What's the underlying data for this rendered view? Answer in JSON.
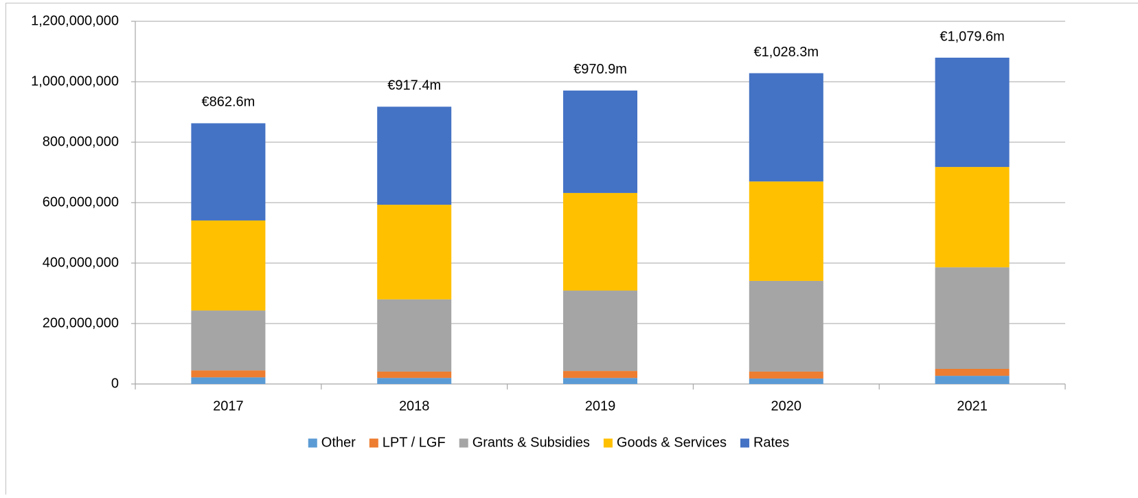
{
  "chart_data": {
    "type": "stacked_bar",
    "categories": [
      "2017",
      "2018",
      "2019",
      "2020",
      "2021"
    ],
    "series": [
      {
        "name": "Other",
        "color": "#5b9bd5",
        "values": [
          22000000,
          20000000,
          20000000,
          18000000,
          27000000
        ]
      },
      {
        "name": "LPT / LGF",
        "color": "#ed7d31",
        "values": [
          23000000,
          21000000,
          23000000,
          23000000,
          23000000
        ]
      },
      {
        "name": "Grants & Subsidies",
        "color": "#a5a5a5",
        "values": [
          198000000,
          239000000,
          266000000,
          300000000,
          336000000
        ]
      },
      {
        "name": "Goods & Services",
        "color": "#ffc000",
        "values": [
          298000000,
          313000000,
          323000000,
          329000000,
          332000000
        ]
      },
      {
        "name": "Rates",
        "color": "#4472c4",
        "values": [
          321600000,
          324400000,
          338900000,
          358300000,
          361600000
        ]
      }
    ],
    "total_labels": [
      "€862.6m",
      "€917.4m",
      "€970.9m",
      "€1,028.3m",
      "€1,079.6m"
    ],
    "ylim": [
      0,
      1200000000
    ],
    "yticks": [
      0,
      {
        "value": 200000000,
        "label": "200,000,000"
      },
      {
        "value": 400000000,
        "label": "400,000,000"
      },
      {
        "value": 600000000,
        "label": "600,000,000"
      },
      {
        "value": 800000000,
        "label": "800,000,000"
      },
      {
        "value": 1000000000,
        "label": "1,000,000,000"
      },
      {
        "value": 1200000000,
        "label": "1,200,000,000"
      }
    ],
    "grid": true,
    "legend": "bottom"
  }
}
